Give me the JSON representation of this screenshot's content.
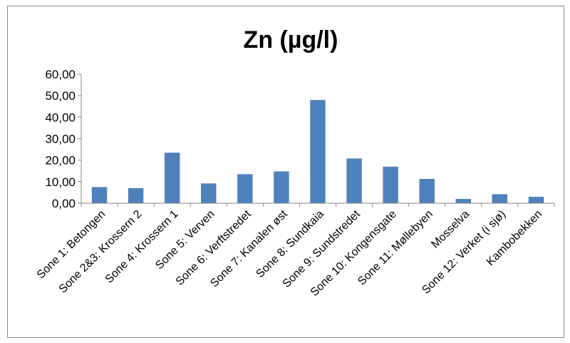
{
  "chart_data": {
    "type": "bar",
    "title": "Zn (µg/l)",
    "xlabel": "",
    "ylabel": "",
    "ylim": [
      0,
      60
    ],
    "yticks": [
      "0,00",
      "10,00",
      "20,00",
      "30,00",
      "40,00",
      "50,00",
      "60,00"
    ],
    "categories": [
      "Sone 1: Betongen",
      "Sone 2&3: Krossern 2",
      "Sone 4: Krossern 1",
      "Sone 5: Verven",
      "Sone 6: Verftstredet",
      "Sone 7: Kanalen øst",
      "Sone 8: Sundkaia",
      "Sone 9: Sundstredet",
      "Sone 10: Kongensgate",
      "Sone 11: Møllebyen",
      "Mosselva",
      "Sone 12: Verket (i sjø)",
      "Kambobekken"
    ],
    "values": [
      7.5,
      7.0,
      23.5,
      9.2,
      13.5,
      14.8,
      48.0,
      20.8,
      17.0,
      11.3,
      2.0,
      4.2,
      3.0
    ],
    "bar_color": "#4f81bd",
    "grid": false,
    "legend": "none"
  }
}
